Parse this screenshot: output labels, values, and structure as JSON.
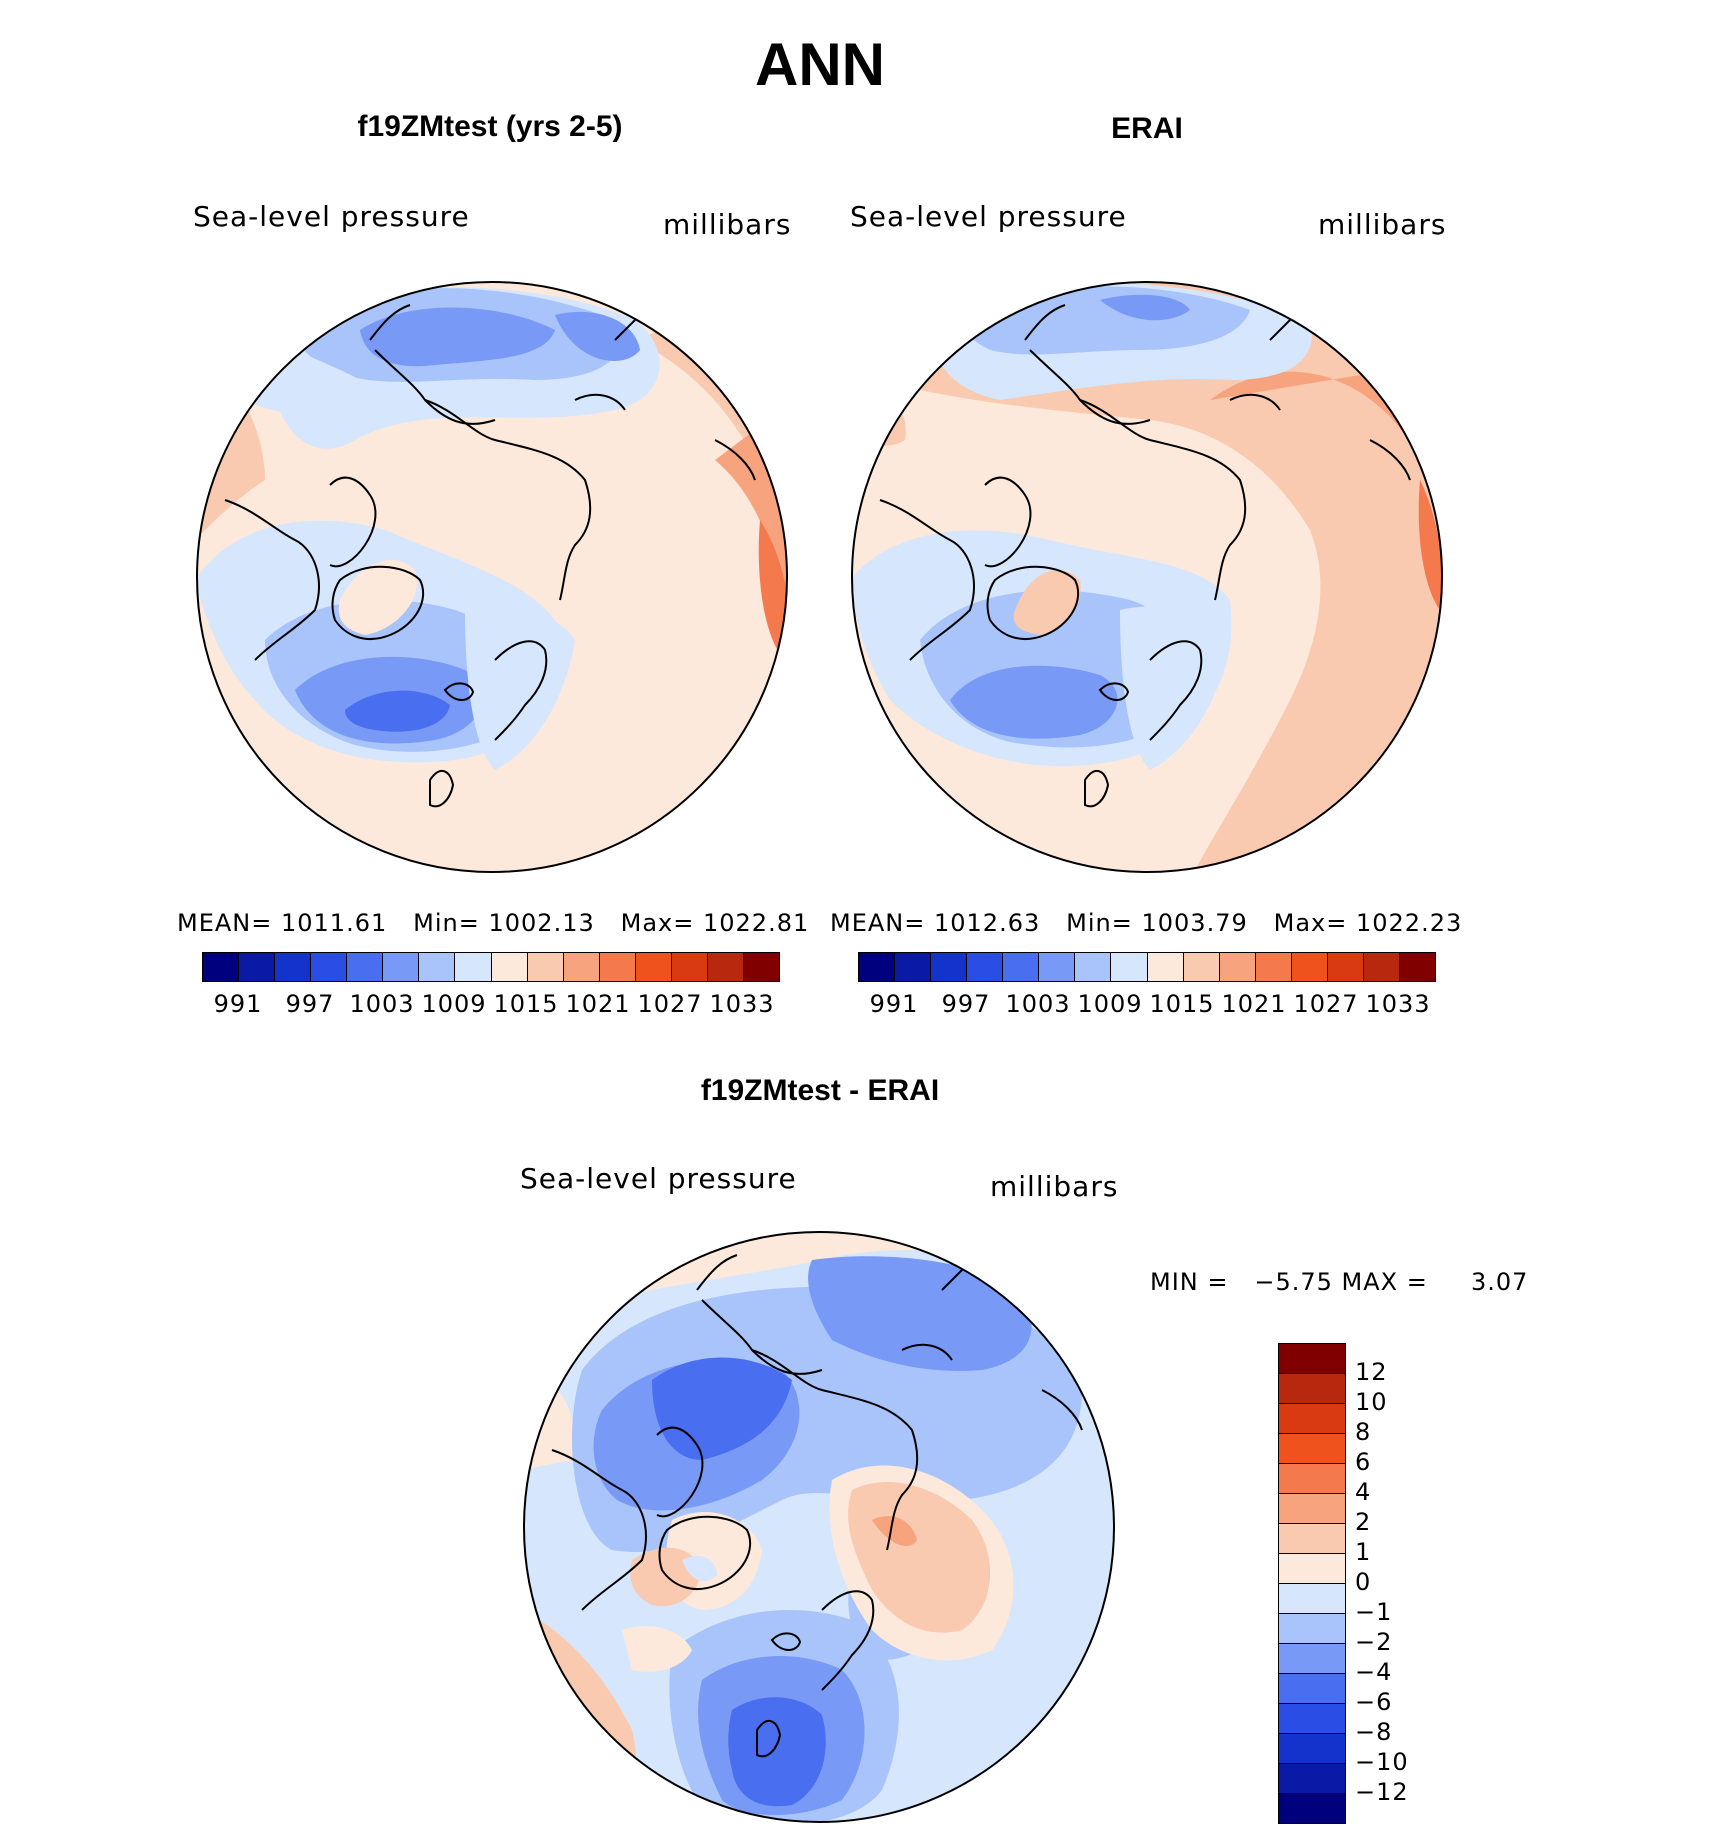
{
  "figure": {
    "season": "ANN",
    "panel_a": {
      "title": "f19ZMtest (yrs 2-5)",
      "variable": "Sea-level pressure",
      "units": "millibars",
      "mean_label": "MEAN=",
      "mean": "1011.61",
      "min_label": "Min=",
      "min": "1002.13",
      "max_label": "Max=",
      "max": "1022.81"
    },
    "panel_b": {
      "title": "ERAI",
      "variable": "Sea-level pressure",
      "units": "millibars",
      "mean_label": "MEAN=",
      "mean": "1012.63",
      "min_label": "Min=",
      "min": "1003.79",
      "max_label": "Max=",
      "max": "1022.23"
    },
    "panel_diff": {
      "title": "f19ZMtest - ERAI",
      "variable": "Sea-level pressure",
      "units": "millibars",
      "minmax_text": "MIN =   −5.75 MAX =     3.07"
    }
  },
  "colorbar_abs": {
    "colors": [
      "#00007f",
      "#0a1aa6",
      "#1433cc",
      "#2a4de6",
      "#4a6ef0",
      "#7899f5",
      "#a9c4fa",
      "#d6e6fc",
      "#fde9dc",
      "#f9c9b0",
      "#f6a37e",
      "#f47a4e",
      "#f0521e",
      "#d93a12",
      "#b8280e",
      "#800000"
    ],
    "ticks": [
      "991",
      "997",
      "1003",
      "1009",
      "1015",
      "1021",
      "1027",
      "1033"
    ]
  },
  "colorbar_diff": {
    "colors": [
      "#800000",
      "#b8280e",
      "#d93a12",
      "#f0521e",
      "#f47a4e",
      "#f6a37e",
      "#f9c9b0",
      "#fde9dc",
      "#d6e6fc",
      "#a9c4fa",
      "#7899f5",
      "#4a6ef0",
      "#2a4de6",
      "#1433cc",
      "#0a1aa6",
      "#00007f"
    ],
    "ticks": [
      "12",
      "10",
      "8",
      "6",
      "4",
      "2",
      "1",
      "0",
      "−1",
      "−2",
      "−4",
      "−6",
      "−8",
      "−10",
      "−12"
    ]
  }
}
